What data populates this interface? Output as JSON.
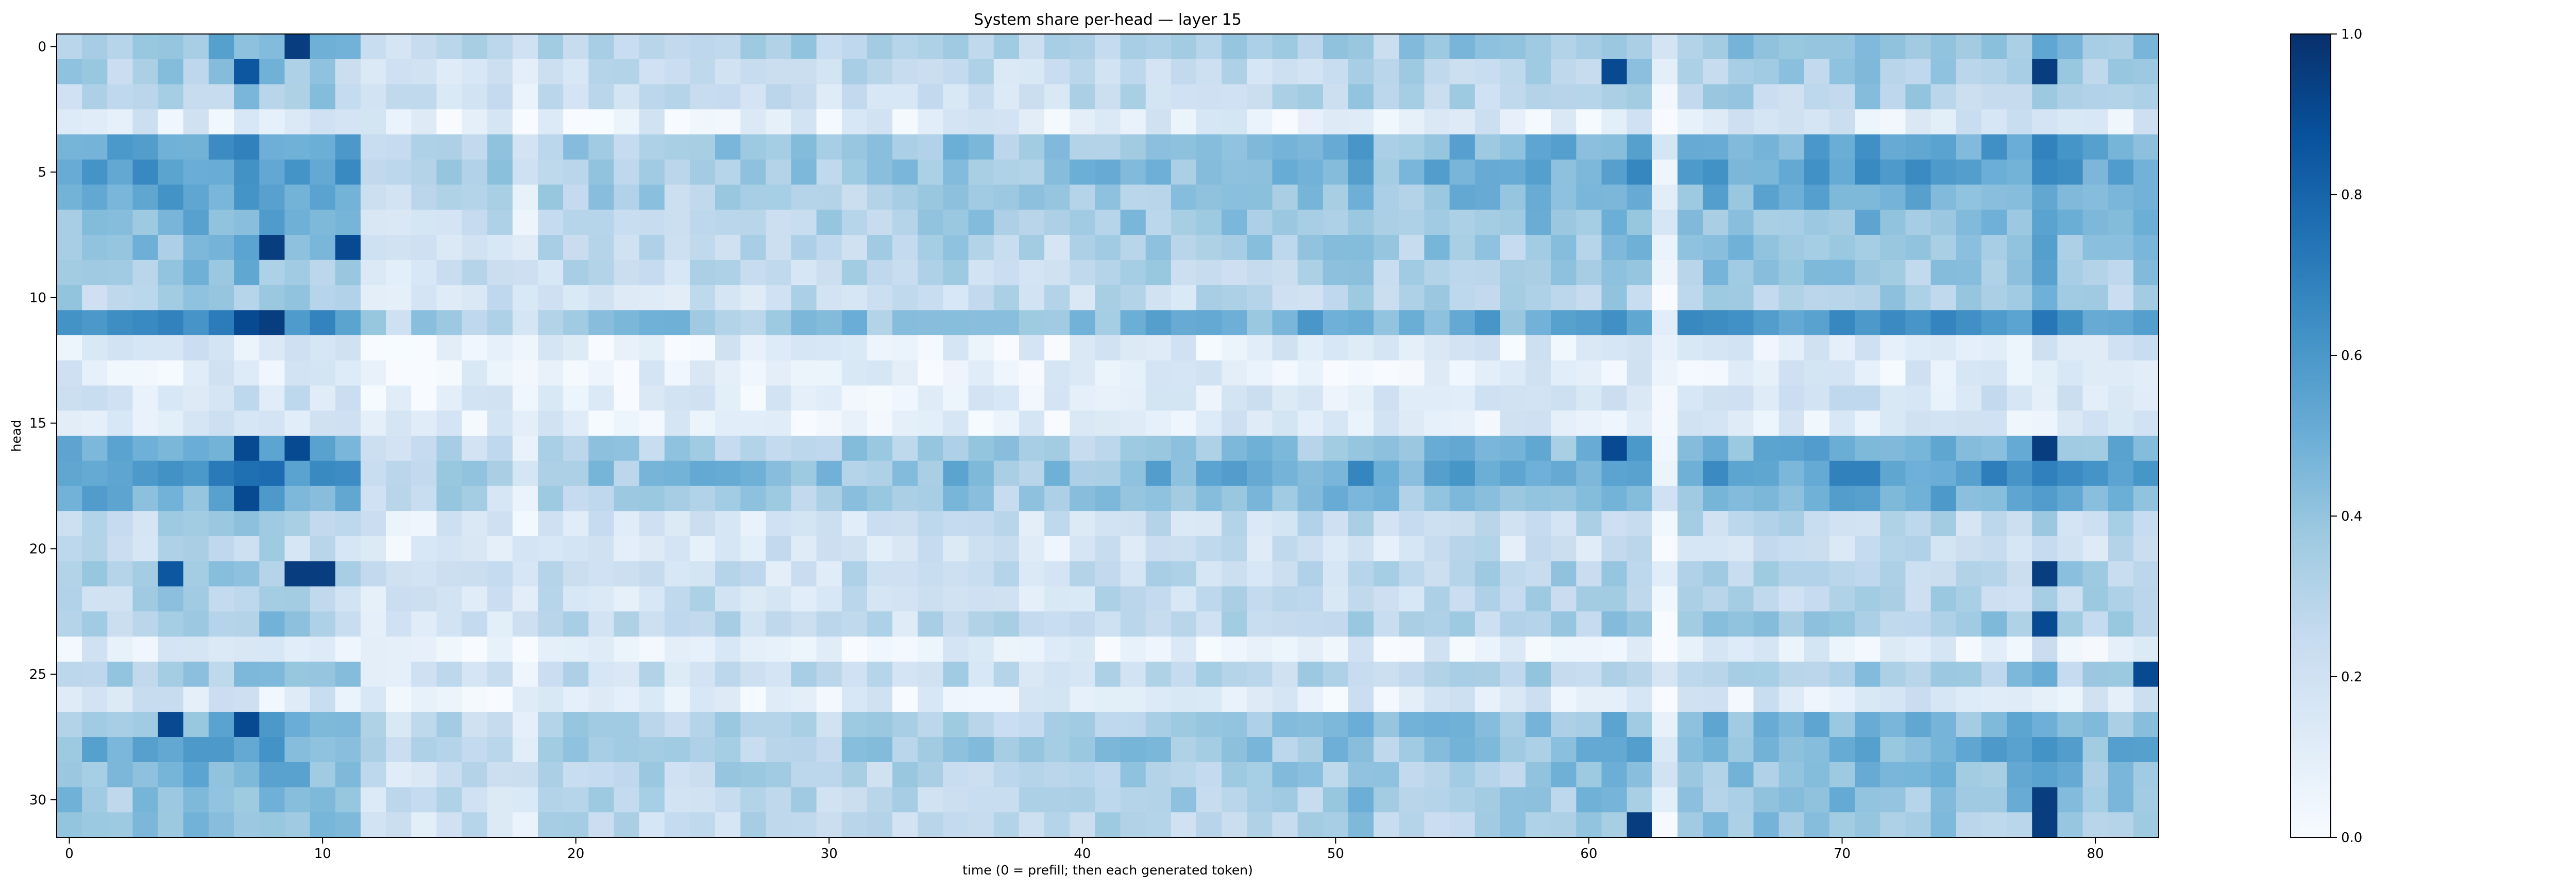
{
  "chart_data": {
    "type": "heatmap",
    "title": "System share per-head — layer 15",
    "xlabel": "time (0 = prefill; then each generated token)",
    "ylabel": "head",
    "x_ticks": [
      0,
      10,
      20,
      30,
      40,
      50,
      60,
      70,
      80
    ],
    "y_ticks": [
      0,
      5,
      10,
      15,
      20,
      25,
      30
    ],
    "n_cols": 83,
    "n_rows": 32,
    "colormap": "Blues",
    "colorbar": {
      "vmin": 0.0,
      "vmax": 1.0,
      "ticks": [
        "0.0",
        "0.2",
        "0.4",
        "0.6",
        "0.8",
        "1.0"
      ]
    },
    "grid": false,
    "row_profile": [
      0.4,
      0.32,
      0.3,
      0.12,
      0.5,
      0.52,
      0.45,
      0.42,
      0.38,
      0.35,
      0.3,
      0.55,
      0.12,
      0.1,
      0.15,
      0.12,
      0.45,
      0.55,
      0.45,
      0.25,
      0.22,
      0.3,
      0.28,
      0.32,
      0.1,
      0.32,
      0.12,
      0.42,
      0.45,
      0.4,
      0.38,
      0.35
    ],
    "col_profile": [
      1.0,
      1.05,
      1.0,
      1.1,
      1.15,
      1.1,
      1.15,
      1.25,
      1.2,
      1.15,
      1.1,
      1.05,
      0.6,
      0.55,
      0.6,
      0.65,
      0.6,
      0.6,
      0.35,
      0.7,
      0.75,
      0.75,
      0.7,
      0.75,
      0.7,
      0.8,
      0.75,
      0.7,
      0.7,
      0.75,
      0.7,
      0.75,
      0.75,
      0.7,
      0.75,
      0.85,
      0.8,
      0.75,
      0.7,
      0.7,
      0.75,
      0.8,
      0.85,
      0.85,
      0.8,
      0.85,
      0.9,
      0.85,
      0.85,
      0.9,
      0.9,
      1.05,
      0.85,
      0.9,
      0.95,
      1.0,
      0.95,
      0.9,
      0.95,
      1.0,
      1.0,
      1.05,
      1.1,
      0.25,
      1.0,
      1.05,
      1.05,
      1.05,
      1.0,
      1.05,
      1.1,
      1.1,
      1.1,
      1.05,
      1.1,
      1.05,
      1.1,
      1.1,
      1.3,
      1.05,
      1.05,
      1.05,
      1.05
    ],
    "hotspots": [
      {
        "row": 0,
        "col": 9,
        "value": 0.95
      },
      {
        "row": 1,
        "col": 7,
        "value": 0.85
      },
      {
        "row": 1,
        "col": 78,
        "value": 0.95
      },
      {
        "row": 1,
        "col": 61,
        "value": 0.9
      },
      {
        "row": 8,
        "col": 8,
        "value": 0.95
      },
      {
        "row": 8,
        "col": 11,
        "value": 0.9
      },
      {
        "row": 11,
        "col": 8,
        "value": 0.95
      },
      {
        "row": 11,
        "col": 7,
        "value": 0.9
      },
      {
        "row": 16,
        "col": 7,
        "value": 0.9
      },
      {
        "row": 16,
        "col": 9,
        "value": 0.9
      },
      {
        "row": 16,
        "col": 61,
        "value": 0.9
      },
      {
        "row": 16,
        "col": 78,
        "value": 0.95
      },
      {
        "row": 18,
        "col": 7,
        "value": 0.9
      },
      {
        "row": 21,
        "col": 9,
        "value": 0.95
      },
      {
        "row": 21,
        "col": 10,
        "value": 0.95
      },
      {
        "row": 21,
        "col": 4,
        "value": 0.85
      },
      {
        "row": 21,
        "col": 78,
        "value": 0.95
      },
      {
        "row": 23,
        "col": 78,
        "value": 0.9
      },
      {
        "row": 27,
        "col": 4,
        "value": 0.9
      },
      {
        "row": 27,
        "col": 7,
        "value": 0.9
      },
      {
        "row": 30,
        "col": 78,
        "value": 0.95
      },
      {
        "row": 31,
        "col": 62,
        "value": 0.95
      },
      {
        "row": 31,
        "col": 78,
        "value": 0.95
      },
      {
        "row": 25,
        "col": 82,
        "value": 0.9
      }
    ]
  }
}
